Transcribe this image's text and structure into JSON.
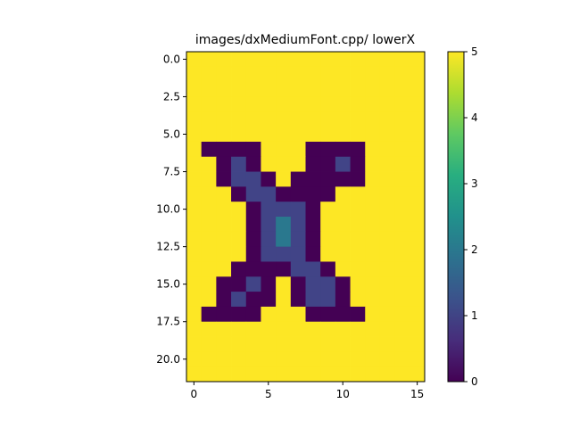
{
  "chart_data": {
    "type": "heatmap",
    "title": "images/dxMediumFont.cpp/ lowerX",
    "colormap": "viridis",
    "value_range": [
      0,
      5
    ],
    "x_ticks": [
      "0",
      "5",
      "10",
      "15"
    ],
    "y_ticks": [
      "0.0",
      "2.5",
      "5.0",
      "7.5",
      "10.0",
      "12.5",
      "15.0",
      "17.5",
      "20.0"
    ],
    "colorbar_ticks": [
      "0",
      "1",
      "2",
      "3",
      "4",
      "5"
    ],
    "x_range": [
      -0.5,
      15.5
    ],
    "y_range": [
      -0.5,
      21.5
    ],
    "matrix": [
      [
        5,
        5,
        5,
        5,
        5,
        5,
        5,
        5,
        5,
        5,
        5,
        5,
        5,
        5,
        5,
        5
      ],
      [
        5,
        5,
        5,
        5,
        5,
        5,
        5,
        5,
        5,
        5,
        5,
        5,
        5,
        5,
        5,
        5
      ],
      [
        5,
        5,
        5,
        5,
        5,
        5,
        5,
        5,
        5,
        5,
        5,
        5,
        5,
        5,
        5,
        5
      ],
      [
        5,
        5,
        5,
        5,
        5,
        5,
        5,
        5,
        5,
        5,
        5,
        5,
        5,
        5,
        5,
        5
      ],
      [
        5,
        5,
        5,
        5,
        5,
        5,
        5,
        5,
        5,
        5,
        5,
        5,
        5,
        5,
        5,
        5
      ],
      [
        5,
        5,
        5,
        5,
        5,
        5,
        5,
        5,
        5,
        5,
        5,
        5,
        5,
        5,
        5,
        5
      ],
      [
        5,
        0,
        0,
        0,
        0,
        5,
        5,
        5,
        0,
        0,
        0,
        0,
        5,
        5,
        5,
        5
      ],
      [
        5,
        5,
        0,
        1,
        0,
        5,
        5,
        5,
        0,
        0,
        1,
        0,
        5,
        5,
        5,
        5
      ],
      [
        5,
        5,
        0,
        1,
        1,
        0,
        5,
        0,
        0,
        0,
        0,
        0,
        5,
        5,
        5,
        5
      ],
      [
        5,
        5,
        5,
        0,
        1,
        1,
        0,
        0,
        0,
        0,
        5,
        5,
        5,
        5,
        5,
        5
      ],
      [
        5,
        5,
        5,
        5,
        0,
        1,
        1,
        1,
        0,
        5,
        5,
        5,
        5,
        5,
        5,
        5
      ],
      [
        5,
        5,
        5,
        5,
        0,
        1,
        2,
        1,
        0,
        5,
        5,
        5,
        5,
        5,
        5,
        5
      ],
      [
        5,
        5,
        5,
        5,
        0,
        1,
        2,
        1,
        0,
        5,
        5,
        5,
        5,
        5,
        5,
        5
      ],
      [
        5,
        5,
        5,
        5,
        0,
        1,
        1,
        1,
        0,
        5,
        5,
        5,
        5,
        5,
        5,
        5
      ],
      [
        5,
        5,
        5,
        0,
        0,
        0,
        0,
        1,
        1,
        0,
        5,
        5,
        5,
        5,
        5,
        5
      ],
      [
        5,
        5,
        0,
        0,
        1,
        0,
        5,
        0,
        1,
        1,
        0,
        5,
        5,
        5,
        5,
        5
      ],
      [
        5,
        5,
        0,
        1,
        0,
        0,
        5,
        0,
        1,
        1,
        0,
        5,
        5,
        5,
        5,
        5
      ],
      [
        5,
        0,
        0,
        0,
        0,
        5,
        5,
        5,
        0,
        0,
        0,
        0,
        5,
        5,
        5,
        5
      ],
      [
        5,
        5,
        5,
        5,
        5,
        5,
        5,
        5,
        5,
        5,
        5,
        5,
        5,
        5,
        5,
        5
      ],
      [
        5,
        5,
        5,
        5,
        5,
        5,
        5,
        5,
        5,
        5,
        5,
        5,
        5,
        5,
        5,
        5
      ],
      [
        5,
        5,
        5,
        5,
        5,
        5,
        5,
        5,
        5,
        5,
        5,
        5,
        5,
        5,
        5,
        5
      ],
      [
        5,
        5,
        5,
        5,
        5,
        5,
        5,
        5,
        5,
        5,
        5,
        5,
        5,
        5,
        5,
        5
      ]
    ]
  }
}
